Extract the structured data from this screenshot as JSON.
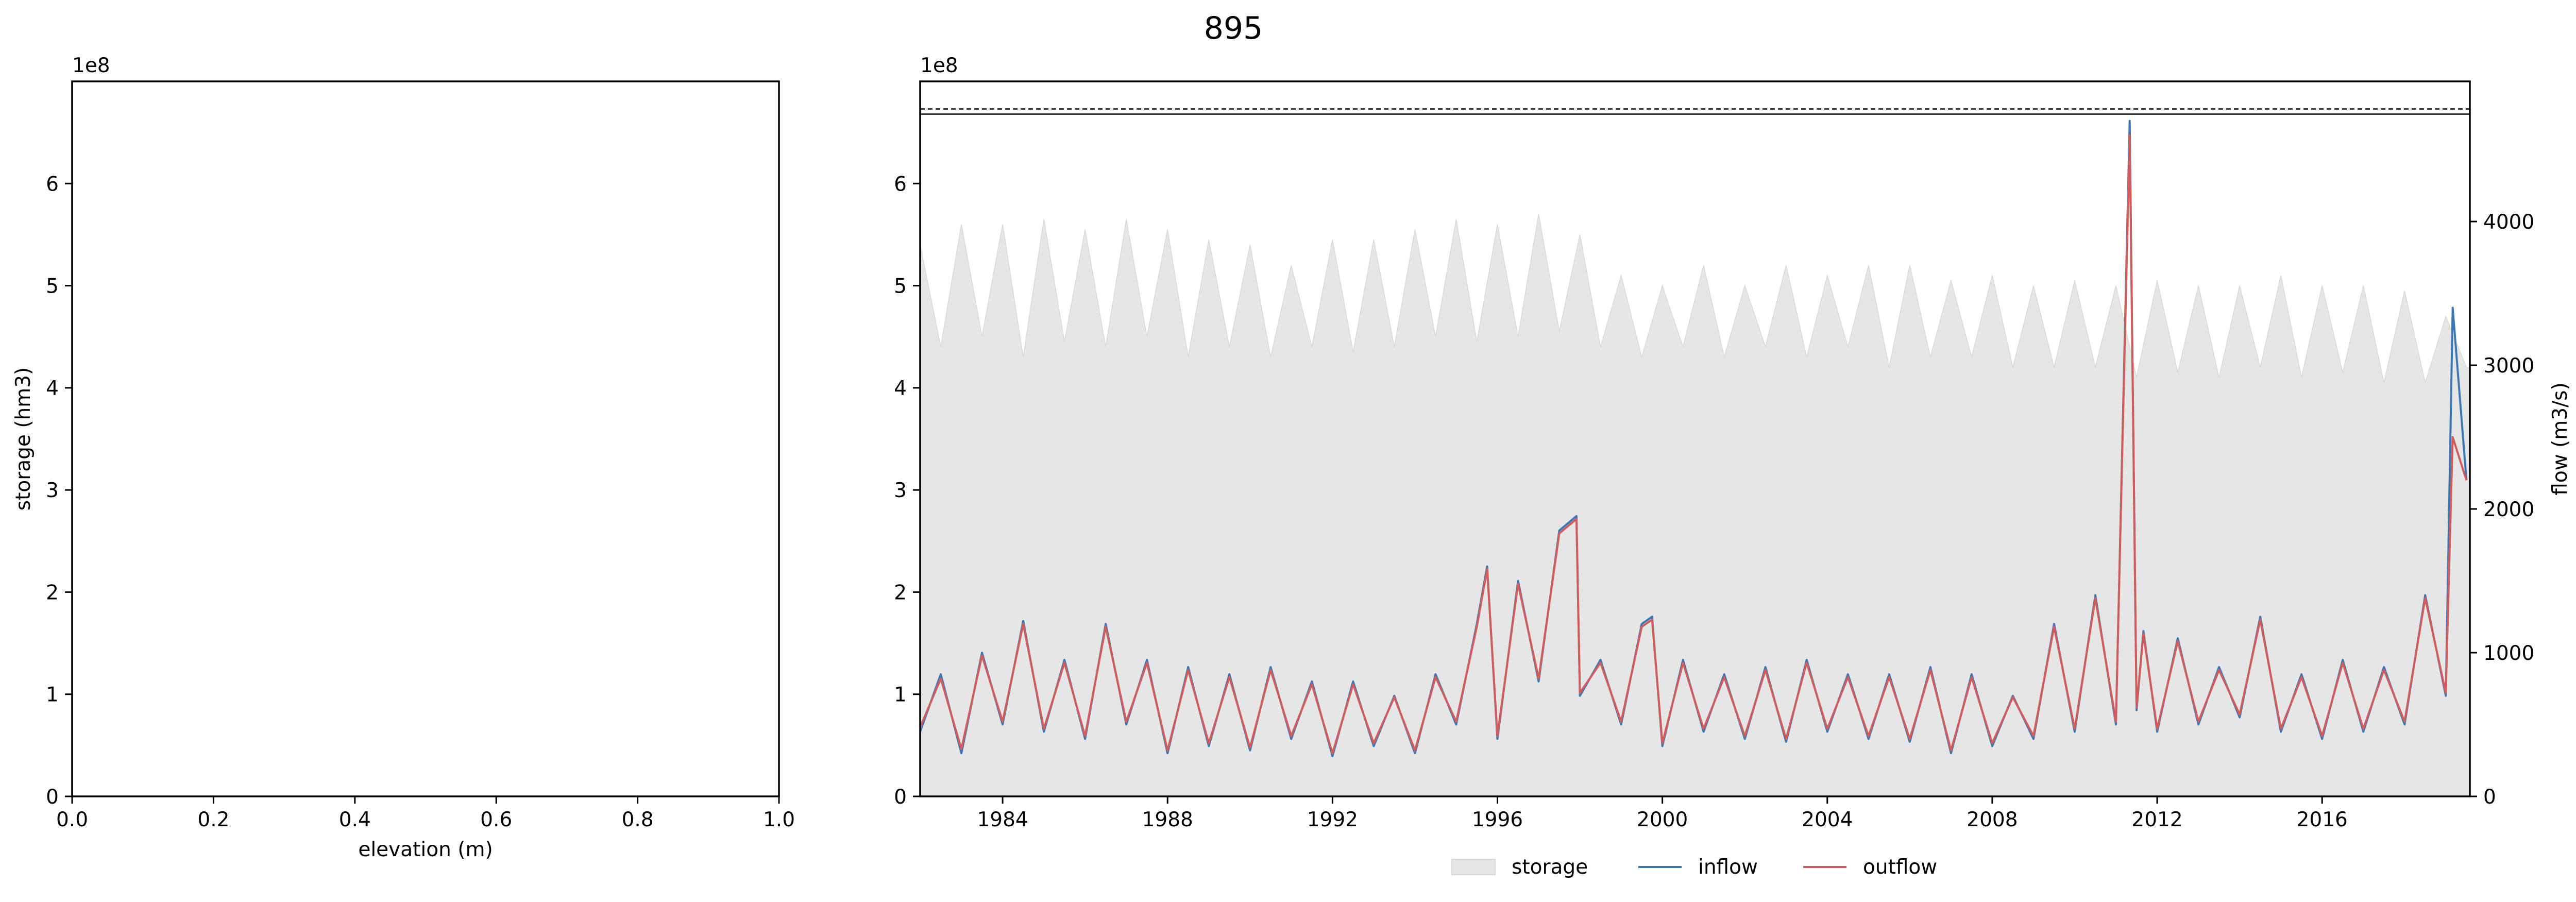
{
  "figure": {
    "title": "895"
  },
  "chart_data": [
    {
      "type": "line",
      "title": "",
      "xlabel": "elevation (m)",
      "ylabel": "storage (hm3)",
      "xlim": [
        0.0,
        1.0
      ],
      "ylim": [
        0,
        700000000
      ],
      "y_offset_text": "1e8",
      "x_ticks": [
        0.0,
        0.2,
        0.4,
        0.6,
        0.8,
        1.0
      ],
      "x_tick_labels": [
        "0.0",
        "0.2",
        "0.4",
        "0.6",
        "0.8",
        "1.0"
      ],
      "y_ticks": [
        0,
        100000000,
        200000000,
        300000000,
        400000000,
        500000000,
        600000000
      ],
      "y_tick_labels": [
        "0",
        "1",
        "2",
        "3",
        "4",
        "5",
        "6"
      ],
      "grid": false,
      "series": []
    },
    {
      "type": "area",
      "title": "",
      "xlabel": "",
      "ylabel_left": "",
      "ylabel_right": "flow (m3/s)",
      "xlim": [
        "1982-01-01",
        "2019-08-01"
      ],
      "ylim_left": [
        0,
        700000000
      ],
      "ylim_right": [
        0,
        4975
      ],
      "y_offset_text": "1e8",
      "x_tick_labels": [
        "1984",
        "1988",
        "1992",
        "1996",
        "2000",
        "2004",
        "2008",
        "2012",
        "2016"
      ],
      "y_left_ticks": [
        0,
        100000000,
        200000000,
        300000000,
        400000000,
        500000000,
        600000000
      ],
      "y_left_tick_labels": [
        "0",
        "1",
        "2",
        "3",
        "4",
        "5",
        "6"
      ],
      "y_right_ticks": [
        0,
        1000,
        2000,
        3000,
        4000
      ],
      "y_right_tick_labels": [
        "0",
        "1000",
        "2000",
        "3000",
        "4000"
      ],
      "reference_lines": [
        {
          "value": 673000000,
          "style": "dashed"
        },
        {
          "value": 668000000,
          "style": "solid"
        }
      ],
      "legend": {
        "placement": "bottom-center",
        "entries": [
          "storage",
          "inflow",
          "outflow"
        ]
      },
      "grid": false,
      "series": [
        {
          "name": "storage",
          "axis": "left",
          "kind": "area",
          "color": "#e6e6e6",
          "x": [
            "1982-01",
            "1982-07",
            "1983-01",
            "1983-07",
            "1984-01",
            "1984-07",
            "1985-01",
            "1985-07",
            "1986-01",
            "1986-07",
            "1987-01",
            "1987-07",
            "1988-01",
            "1988-07",
            "1989-01",
            "1989-07",
            "1990-01",
            "1990-07",
            "1991-01",
            "1991-07",
            "1992-01",
            "1992-07",
            "1993-01",
            "1993-07",
            "1994-01",
            "1994-07",
            "1995-01",
            "1995-07",
            "1996-01",
            "1996-07",
            "1997-01",
            "1997-07",
            "1998-01",
            "1998-07",
            "1999-01",
            "1999-07",
            "2000-01",
            "2000-07",
            "2001-01",
            "2001-07",
            "2002-01",
            "2002-07",
            "2003-01",
            "2003-07",
            "2004-01",
            "2004-07",
            "2005-01",
            "2005-07",
            "2006-01",
            "2006-07",
            "2007-01",
            "2007-07",
            "2008-01",
            "2008-07",
            "2009-01",
            "2009-07",
            "2010-01",
            "2010-07",
            "2011-01",
            "2011-07",
            "2012-01",
            "2012-07",
            "2013-01",
            "2013-07",
            "2014-01",
            "2014-07",
            "2015-01",
            "2015-07",
            "2016-01",
            "2016-07",
            "2017-01",
            "2017-07",
            "2018-01",
            "2018-07",
            "2019-01",
            "2019-07"
          ],
          "values": [
            540000000,
            440000000,
            560000000,
            450000000,
            560000000,
            430000000,
            565000000,
            445000000,
            555000000,
            440000000,
            565000000,
            450000000,
            555000000,
            430000000,
            545000000,
            440000000,
            540000000,
            430000000,
            520000000,
            440000000,
            545000000,
            435000000,
            545000000,
            440000000,
            555000000,
            450000000,
            565000000,
            445000000,
            560000000,
            450000000,
            570000000,
            455000000,
            550000000,
            440000000,
            510000000,
            430000000,
            500000000,
            440000000,
            520000000,
            430000000,
            500000000,
            440000000,
            520000000,
            430000000,
            510000000,
            440000000,
            520000000,
            420000000,
            520000000,
            430000000,
            505000000,
            430000000,
            510000000,
            420000000,
            500000000,
            420000000,
            505000000,
            420000000,
            500000000,
            410000000,
            505000000,
            415000000,
            500000000,
            410000000,
            500000000,
            420000000,
            510000000,
            410000000,
            500000000,
            415000000,
            500000000,
            405000000,
            495000000,
            405000000,
            470000000,
            420000000
          ]
        },
        {
          "name": "inflow",
          "axis": "right",
          "kind": "line",
          "color": "#3a78b5",
          "x": [
            "1982-01",
            "1982-07",
            "1983-01",
            "1983-07",
            "1984-01",
            "1984-07",
            "1985-01",
            "1985-07",
            "1986-01",
            "1986-07",
            "1987-01",
            "1987-07",
            "1988-01",
            "1988-07",
            "1989-01",
            "1989-07",
            "1990-01",
            "1990-07",
            "1991-01",
            "1991-07",
            "1992-01",
            "1992-07",
            "1993-01",
            "1993-07",
            "1994-01",
            "1994-07",
            "1995-01",
            "1995-07",
            "1995-10",
            "1996-01",
            "1996-07",
            "1997-01",
            "1997-07",
            "1997-12",
            "1998-01",
            "1998-07",
            "1999-01",
            "1999-07",
            "1999-10",
            "2000-01",
            "2000-07",
            "2001-01",
            "2001-07",
            "2002-01",
            "2002-07",
            "2003-01",
            "2003-07",
            "2004-01",
            "2004-07",
            "2005-01",
            "2005-07",
            "2006-01",
            "2006-07",
            "2007-01",
            "2007-07",
            "2008-01",
            "2008-07",
            "2009-01",
            "2009-07",
            "2010-01",
            "2010-07",
            "2011-01",
            "2011-05",
            "2011-07",
            "2011-09",
            "2012-01",
            "2012-07",
            "2013-01",
            "2013-07",
            "2014-01",
            "2014-07",
            "2015-01",
            "2015-07",
            "2016-01",
            "2016-07",
            "2017-01",
            "2017-07",
            "2018-01",
            "2018-07",
            "2019-01",
            "2019-03",
            "2019-07"
          ],
          "values": [
            450,
            850,
            300,
            1000,
            500,
            1220,
            450,
            950,
            400,
            1200,
            500,
            950,
            300,
            900,
            350,
            850,
            320,
            900,
            400,
            800,
            280,
            800,
            350,
            700,
            300,
            850,
            500,
            1200,
            1600,
            400,
            1500,
            800,
            1850,
            1950,
            700,
            950,
            500,
            1200,
            1250,
            350,
            950,
            450,
            850,
            400,
            900,
            380,
            950,
            450,
            850,
            400,
            850,
            380,
            900,
            300,
            850,
            350,
            700,
            400,
            1200,
            450,
            1400,
            500,
            4700,
            600,
            1150,
            450,
            1100,
            500,
            900,
            550,
            1250,
            450,
            850,
            400,
            950,
            450,
            900,
            500,
            1400,
            700,
            3400,
            2200
          ]
        },
        {
          "name": "outflow",
          "axis": "right",
          "kind": "line",
          "color": "#d05c5c",
          "x": [
            "1982-01",
            "1982-07",
            "1983-01",
            "1983-07",
            "1984-01",
            "1984-07",
            "1985-01",
            "1985-07",
            "1986-01",
            "1986-07",
            "1987-01",
            "1987-07",
            "1988-01",
            "1988-07",
            "1989-01",
            "1989-07",
            "1990-01",
            "1990-07",
            "1991-01",
            "1991-07",
            "1992-01",
            "1992-07",
            "1993-01",
            "1993-07",
            "1994-01",
            "1994-07",
            "1995-01",
            "1995-07",
            "1995-10",
            "1996-01",
            "1996-07",
            "1997-01",
            "1997-07",
            "1997-12",
            "1998-01",
            "1998-07",
            "1999-01",
            "1999-07",
            "1999-10",
            "2000-01",
            "2000-07",
            "2001-01",
            "2001-07",
            "2002-01",
            "2002-07",
            "2003-01",
            "2003-07",
            "2004-01",
            "2004-07",
            "2005-01",
            "2005-07",
            "2006-01",
            "2006-07",
            "2007-01",
            "2007-07",
            "2008-01",
            "2008-07",
            "2009-01",
            "2009-07",
            "2010-01",
            "2010-07",
            "2011-01",
            "2011-05",
            "2011-07",
            "2011-09",
            "2012-01",
            "2012-07",
            "2013-01",
            "2013-07",
            "2014-01",
            "2014-07",
            "2015-01",
            "2015-07",
            "2016-01",
            "2016-07",
            "2017-01",
            "2017-07",
            "2018-01",
            "2018-07",
            "2019-01",
            "2019-03",
            "2019-07"
          ],
          "values": [
            480,
            820,
            330,
            980,
            520,
            1200,
            470,
            930,
            420,
            1180,
            520,
            930,
            320,
            880,
            370,
            830,
            340,
            880,
            420,
            780,
            300,
            780,
            370,
            690,
            320,
            830,
            520,
            1180,
            1580,
            420,
            1480,
            820,
            1830,
            1930,
            720,
            930,
            520,
            1180,
            1230,
            370,
            930,
            470,
            830,
            420,
            880,
            400,
            930,
            470,
            830,
            420,
            830,
            400,
            880,
            320,
            830,
            370,
            690,
            420,
            1180,
            470,
            1380,
            520,
            4600,
            620,
            1130,
            470,
            1080,
            520,
            880,
            570,
            1230,
            470,
            830,
            420,
            930,
            470,
            880,
            520,
            1380,
            720,
            2500,
            2200
          ]
        }
      ]
    }
  ]
}
